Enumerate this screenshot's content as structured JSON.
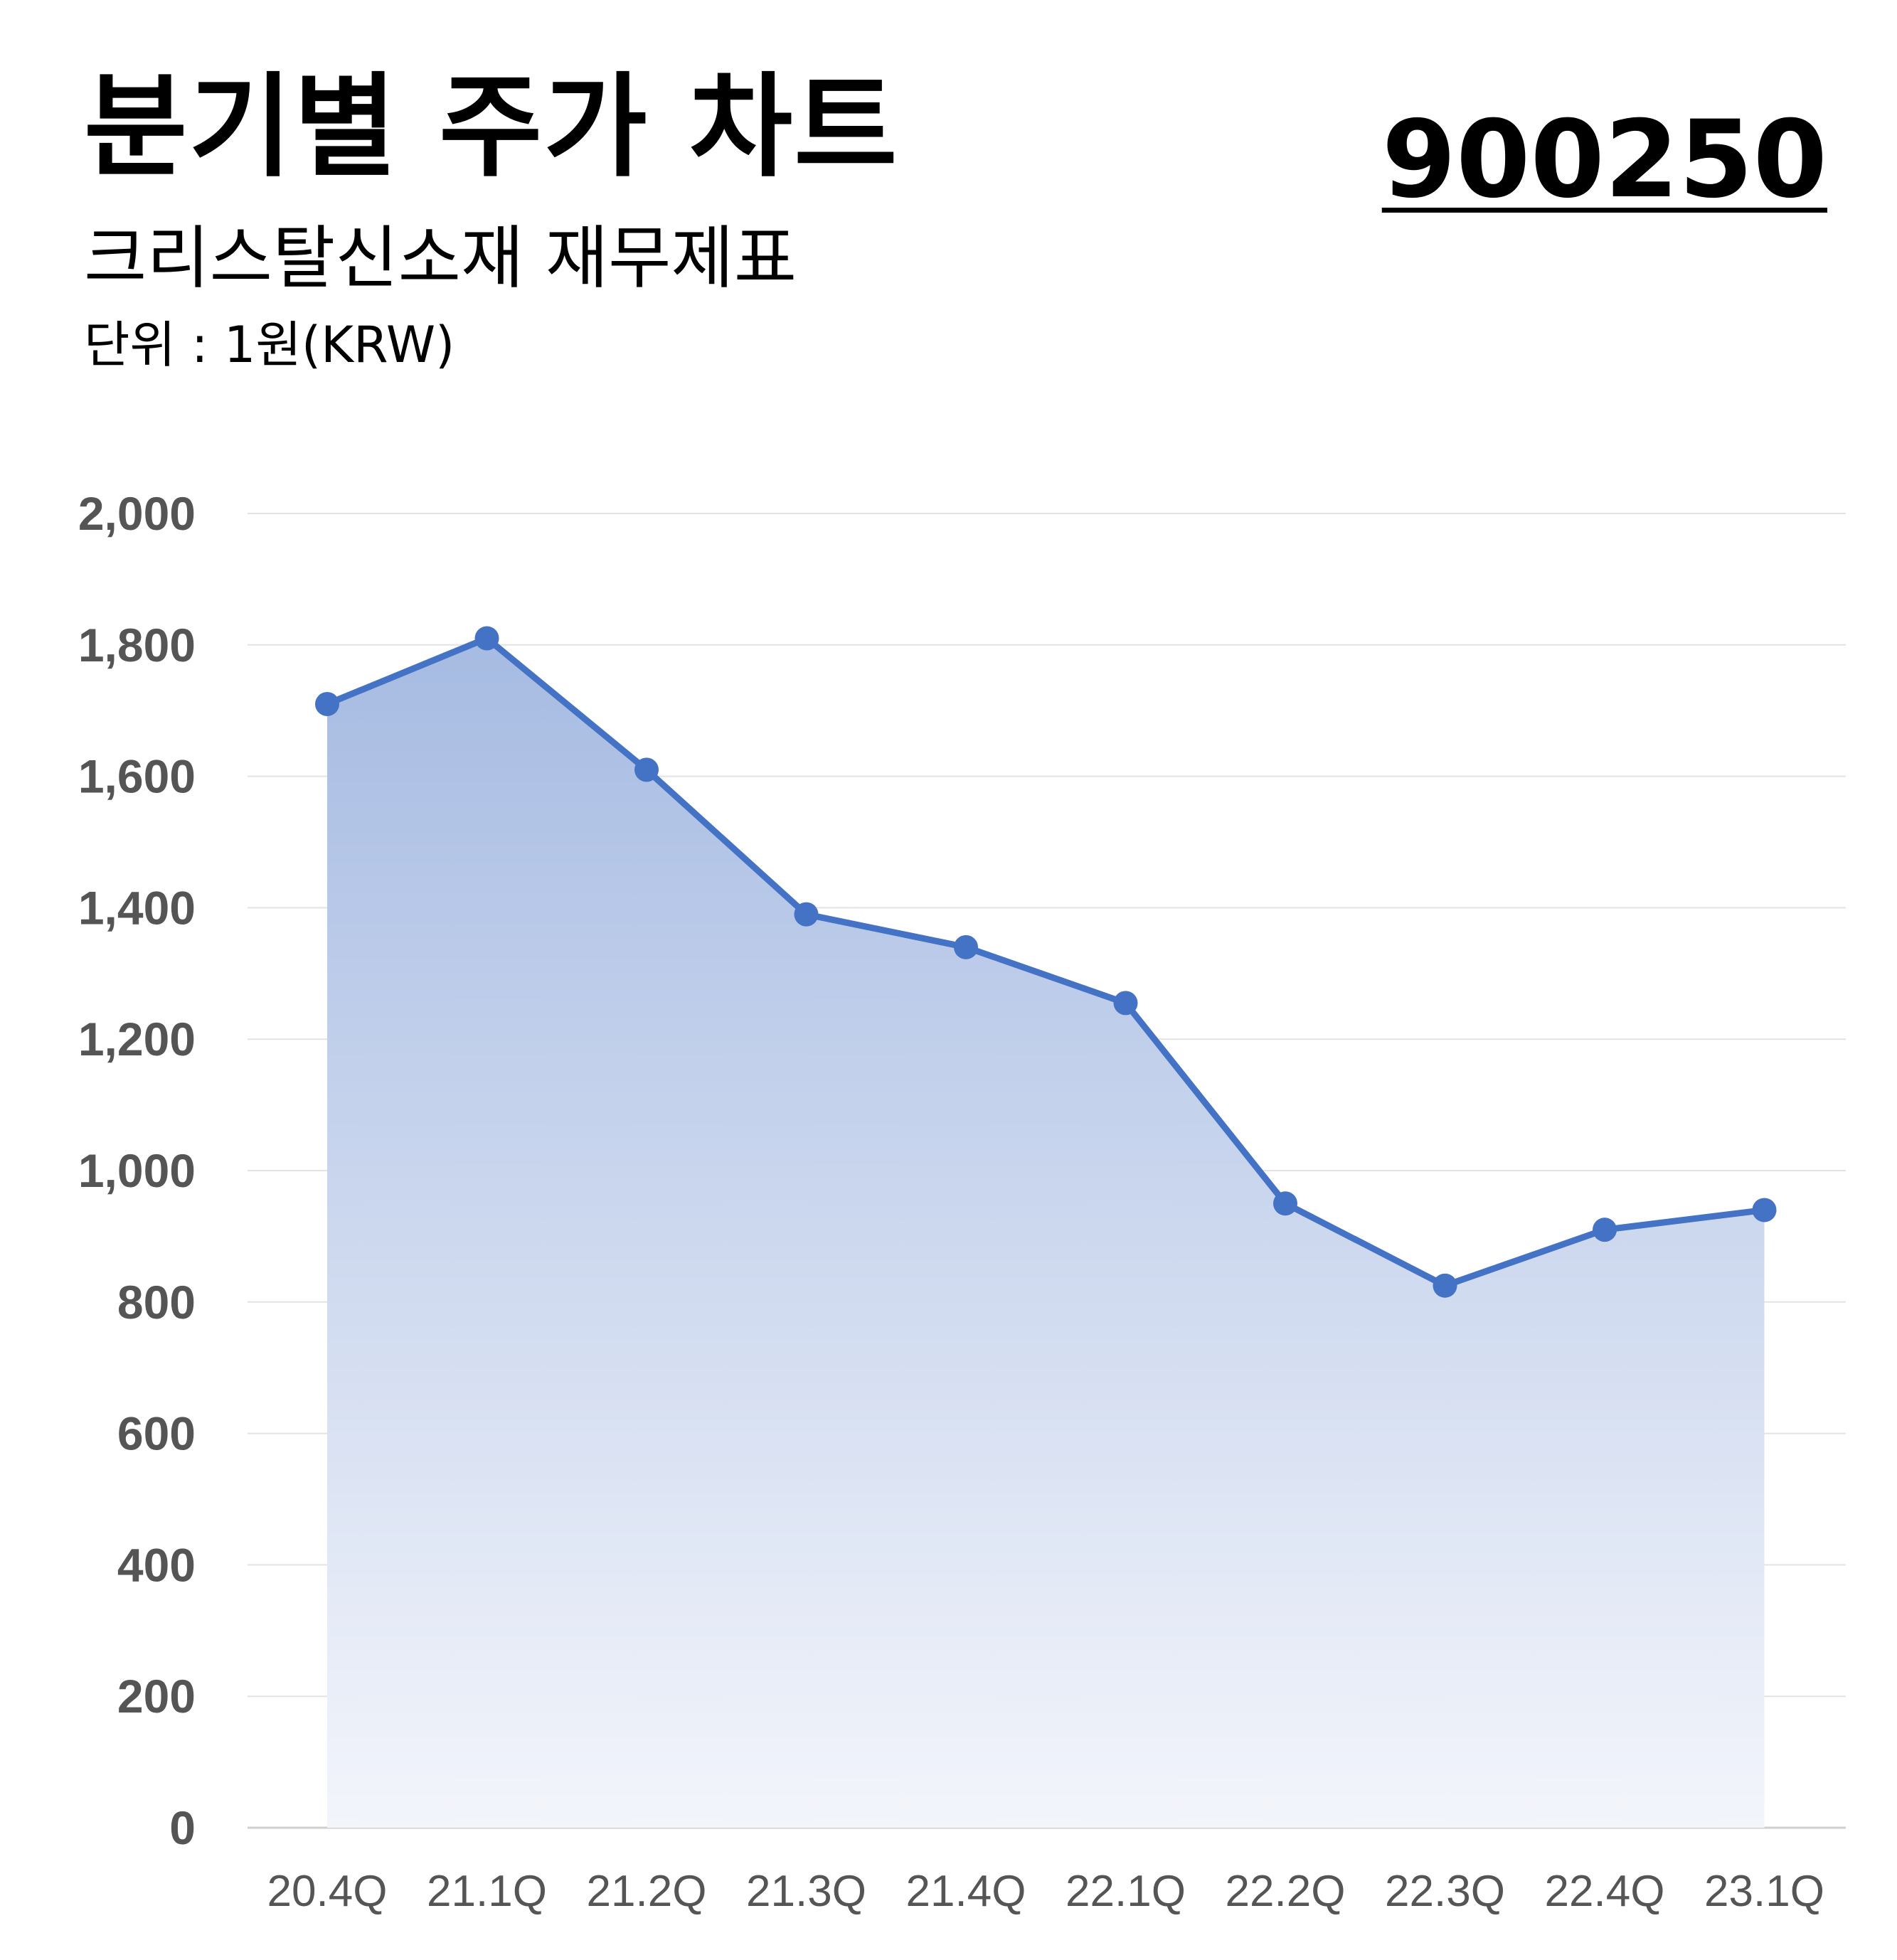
{
  "header": {
    "title": "분기별 주가 차트",
    "subtitle": "크리스탈신소재 재무제표",
    "unit": "단위 : 1원(KRW)",
    "stock_code": "900250"
  },
  "colors": {
    "line": "#4472C4",
    "fill_top": "#A6BBE2",
    "fill_bottom": "#F3F5FB",
    "grid": "#E3E3E3",
    "tick_text": "#555555"
  },
  "chart_data": {
    "type": "area",
    "categories": [
      "20.4Q",
      "21.1Q",
      "21.2Q",
      "21.3Q",
      "21.4Q",
      "22.1Q",
      "22.2Q",
      "22.3Q",
      "22.4Q",
      "23.1Q"
    ],
    "series": [
      {
        "values": [
          1710,
          1810,
          1610,
          1390,
          1340,
          1255,
          950,
          825,
          910,
          940
        ]
      }
    ],
    "yticks": [
      "0",
      "200",
      "400",
      "600",
      "800",
      "1,000",
      "1,200",
      "1,400",
      "1,600",
      "1,800",
      "2,000"
    ],
    "ylim": [
      0,
      2000
    ],
    "grid": true,
    "legend": "none",
    "markers": true
  }
}
